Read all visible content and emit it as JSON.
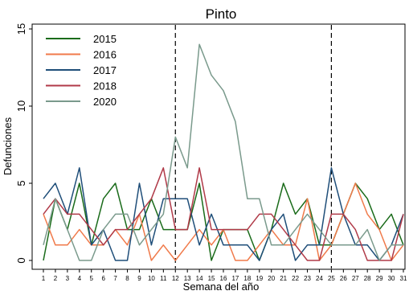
{
  "chart_data": {
    "type": "line",
    "title": "Pinto",
    "xlabel": "Semana del año",
    "ylabel": "Defunciones",
    "x": [
      1,
      2,
      3,
      4,
      5,
      6,
      7,
      8,
      9,
      10,
      11,
      12,
      13,
      14,
      15,
      16,
      17,
      18,
      19,
      20,
      21,
      22,
      23,
      24,
      25,
      26,
      27,
      28,
      29,
      30,
      31
    ],
    "xlim": [
      1,
      31
    ],
    "ylim": [
      0,
      15
    ],
    "yticks": [
      0,
      5,
      10,
      15
    ],
    "grid": false,
    "legend_position": "top-left",
    "vlines": [
      12,
      25
    ],
    "series": [
      {
        "name": "2015",
        "color": "#1a6b1a",
        "values": [
          0,
          4,
          2,
          5,
          1,
          4,
          5,
          2,
          2,
          4,
          2,
          2,
          2,
          5,
          0,
          2,
          2,
          2,
          0,
          2,
          5,
          3,
          4,
          1,
          1,
          3,
          5,
          4,
          2,
          3,
          1
        ]
      },
      {
        "name": "2016",
        "color": "#f07a4a",
        "values": [
          3,
          1,
          1,
          2,
          1,
          1,
          2,
          1,
          3,
          0,
          1,
          0,
          1,
          2,
          1,
          2,
          0,
          0,
          1,
          2,
          1,
          1,
          4,
          0,
          1,
          3,
          5,
          3,
          2,
          0,
          1
        ]
      },
      {
        "name": "2017",
        "color": "#1f4e79",
        "values": [
          4,
          5,
          3,
          6,
          1,
          2,
          0,
          0,
          5,
          1,
          4,
          4,
          4,
          1,
          3,
          1,
          1,
          1,
          0,
          2,
          3,
          0,
          1,
          1,
          6,
          3,
          1,
          1,
          0,
          1,
          3
        ]
      },
      {
        "name": "2018",
        "color": "#b03a48",
        "values": [
          3,
          4,
          3,
          3,
          2,
          1,
          2,
          2,
          3,
          4,
          6,
          2,
          2,
          6,
          2,
          2,
          2,
          2,
          3,
          3,
          2,
          1,
          0,
          0,
          3,
          3,
          2,
          0,
          0,
          0,
          3
        ]
      },
      {
        "name": "2020",
        "color": "#7a9a8c",
        "values": [
          1,
          4,
          2,
          0,
          0,
          2,
          3,
          3,
          1,
          2,
          3,
          8,
          6,
          14,
          12,
          11,
          9,
          4,
          4,
          1,
          1,
          2,
          3,
          2,
          1,
          1,
          1,
          2,
          0,
          1,
          1
        ]
      }
    ]
  }
}
